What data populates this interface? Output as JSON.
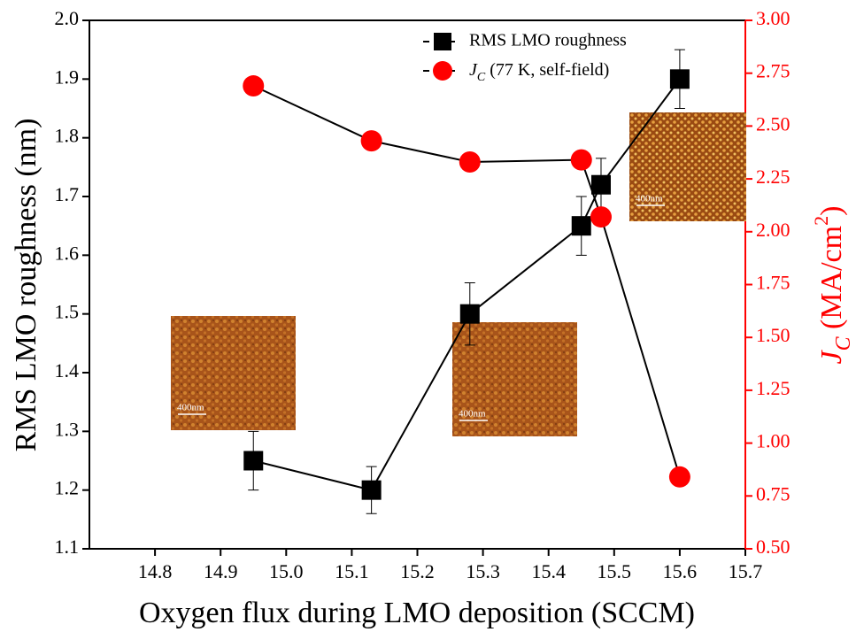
{
  "chart_data": {
    "type": "line",
    "xlabel": "Oxygen flux during LMO deposition (SCCM)",
    "ylabel": "RMS LMO roughness (nm)",
    "y2label": "JC (MA/cm2)",
    "xlim": [
      14.7,
      15.7
    ],
    "xticks": [
      14.8,
      14.9,
      {
        "value": 15.0,
        "label": "15.0"
      },
      15.1,
      15.2,
      15.3,
      15.4,
      15.5,
      15.6,
      15.7
    ],
    "ylim": [
      1.1,
      2.0
    ],
    "yticks": [
      1.1,
      1.2,
      1.3,
      1.4,
      1.5,
      1.6,
      1.7,
      1.8,
      1.9,
      {
        "value": 2.0,
        "label": "2.0"
      }
    ],
    "y2lim": [
      0.5,
      3.0
    ],
    "y2ticks": [
      {
        "value": 0.5,
        "label": "0.50"
      },
      {
        "value": 0.75,
        "label": "0.75"
      },
      {
        "value": 1.0,
        "label": "1.00"
      },
      {
        "value": 1.25,
        "label": "1.25"
      },
      {
        "value": 1.5,
        "label": "1.50"
      },
      {
        "value": 1.75,
        "label": "1.75"
      },
      {
        "value": 2.0,
        "label": "2.00"
      },
      {
        "value": 2.25,
        "label": "2.25"
      },
      {
        "value": 2.5,
        "label": "2.50"
      },
      {
        "value": 2.75,
        "label": "2.75"
      },
      {
        "value": 3.0,
        "label": "3.00"
      }
    ],
    "y2color": "#ff0000",
    "series": [
      {
        "name": "RMS LMO roughness",
        "color": "#000000",
        "marker": "square",
        "axis": "y",
        "x": [
          14.95,
          15.13,
          15.28,
          15.45,
          15.48,
          15.6
        ],
        "values": [
          1.25,
          1.2,
          1.5,
          1.65,
          1.72,
          1.9
        ],
        "errors": [
          0.05,
          0.04,
          0.053,
          0.05,
          0.045,
          0.05
        ]
      },
      {
        "name": "JC (77 K, self-field)",
        "color": "#ff0000",
        "marker": "circle",
        "axis": "y2",
        "x": [
          14.95,
          15.13,
          15.28,
          15.45,
          15.48,
          15.6
        ],
        "values": [
          2.69,
          2.43,
          2.33,
          2.34,
          2.07,
          0.84
        ]
      }
    ],
    "insets": [
      {
        "label": "400nm"
      },
      {
        "label": "400nm"
      },
      {
        "label": "400nm"
      }
    ]
  }
}
